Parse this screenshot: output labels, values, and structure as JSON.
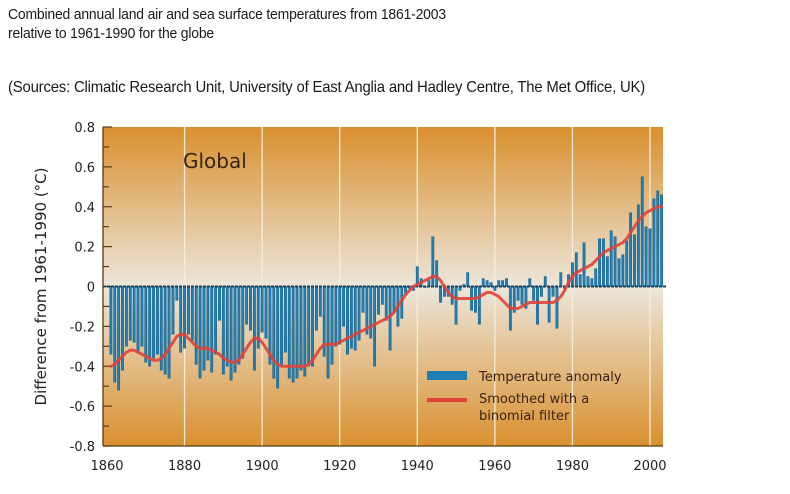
{
  "captions": {
    "line1": "Combined annual land air and sea surface temperatures from 1861-2003",
    "line2": "relative to 1961-1990 for the globe",
    "sources": "(Sources: Climatic Research Unit, University of East Anglia and Hadley Centre, The Met Office, UK)"
  },
  "colors": {
    "bar": "#1f7fb5",
    "bar_edge": "#10557f",
    "smooth": "#e0433a",
    "bg_top": "#d9902f",
    "bg_mid": "#ece6da",
    "bg_bottom": "#d9902f",
    "grid": "#f6ecd8"
  },
  "chart_data": {
    "type": "bar",
    "title": "Global",
    "xlabel": "",
    "ylabel": "Difference from 1961-1990 (°C)",
    "xlim": [
      1860,
      2005
    ],
    "ylim": [
      -0.8,
      0.8
    ],
    "grid": true,
    "grid_axis": "x",
    "legend_placement": "bottom-right",
    "xticks": [
      1860,
      1880,
      1900,
      1920,
      1940,
      1960,
      1980,
      2000
    ],
    "yticks": [
      0.8,
      0.6,
      0.4,
      0.2,
      0,
      -0.2,
      -0.4,
      -0.6,
      -0.8
    ],
    "ytick_labels": [
      "0.8",
      "0.6",
      "0.4",
      "0.2",
      "0",
      "-0.2",
      "-0.4",
      "-0.6",
      "-0.8"
    ],
    "x": [
      1861,
      1862,
      1863,
      1864,
      1865,
      1866,
      1867,
      1868,
      1869,
      1870,
      1871,
      1872,
      1873,
      1874,
      1875,
      1876,
      1877,
      1878,
      1879,
      1880,
      1881,
      1882,
      1883,
      1884,
      1885,
      1886,
      1887,
      1888,
      1889,
      1890,
      1891,
      1892,
      1893,
      1894,
      1895,
      1896,
      1897,
      1898,
      1899,
      1900,
      1901,
      1902,
      1903,
      1904,
      1905,
      1906,
      1907,
      1908,
      1909,
      1910,
      1911,
      1912,
      1913,
      1914,
      1915,
      1916,
      1917,
      1918,
      1919,
      1920,
      1921,
      1922,
      1923,
      1924,
      1925,
      1926,
      1927,
      1928,
      1929,
      1930,
      1931,
      1932,
      1933,
      1934,
      1935,
      1936,
      1937,
      1938,
      1939,
      1940,
      1941,
      1942,
      1943,
      1944,
      1945,
      1946,
      1947,
      1948,
      1949,
      1950,
      1951,
      1952,
      1953,
      1954,
      1955,
      1956,
      1957,
      1958,
      1959,
      1960,
      1961,
      1962,
      1963,
      1964,
      1965,
      1966,
      1967,
      1968,
      1969,
      1970,
      1971,
      1972,
      1973,
      1974,
      1975,
      1976,
      1977,
      1978,
      1979,
      1980,
      1981,
      1982,
      1983,
      1984,
      1985,
      1986,
      1987,
      1988,
      1989,
      1990,
      1991,
      1992,
      1993,
      1994,
      1995,
      1996,
      1997,
      1998,
      1999,
      2000,
      2001,
      2002,
      2003
    ],
    "series": [
      {
        "name": "Temperature anomaly",
        "type": "bar",
        "values": [
          -0.34,
          -0.48,
          -0.52,
          -0.42,
          -0.3,
          -0.27,
          -0.28,
          -0.33,
          -0.3,
          -0.38,
          -0.4,
          -0.36,
          -0.34,
          -0.42,
          -0.44,
          -0.46,
          -0.24,
          -0.07,
          -0.33,
          -0.31,
          -0.24,
          -0.27,
          -0.39,
          -0.46,
          -0.42,
          -0.37,
          -0.43,
          -0.34,
          -0.17,
          -0.44,
          -0.4,
          -0.47,
          -0.43,
          -0.39,
          -0.36,
          -0.19,
          -0.22,
          -0.42,
          -0.31,
          -0.23,
          -0.26,
          -0.39,
          -0.46,
          -0.51,
          -0.39,
          -0.33,
          -0.46,
          -0.48,
          -0.46,
          -0.42,
          -0.45,
          -0.4,
          -0.4,
          -0.22,
          -0.15,
          -0.35,
          -0.46,
          -0.39,
          -0.3,
          -0.29,
          -0.2,
          -0.34,
          -0.31,
          -0.32,
          -0.27,
          -0.13,
          -0.24,
          -0.26,
          -0.4,
          -0.14,
          -0.09,
          -0.17,
          -0.32,
          -0.13,
          -0.2,
          -0.16,
          -0.04,
          -0.01,
          -0.02,
          0.1,
          0.04,
          0.0,
          0.03,
          0.25,
          0.13,
          -0.08,
          -0.05,
          -0.05,
          -0.09,
          -0.19,
          -0.02,
          0.01,
          0.07,
          -0.12,
          -0.13,
          -0.19,
          0.04,
          0.03,
          0.02,
          -0.02,
          0.03,
          0.03,
          0.04,
          -0.22,
          -0.13,
          -0.07,
          -0.09,
          -0.11,
          0.04,
          -0.07,
          -0.19,
          -0.05,
          0.05,
          -0.18,
          -0.05,
          -0.21,
          0.07,
          -0.01,
          0.06,
          0.12,
          0.17,
          0.06,
          0.22,
          0.05,
          0.04,
          0.09,
          0.24,
          0.24,
          0.15,
          0.28,
          0.25,
          0.14,
          0.16,
          0.23,
          0.37,
          0.26,
          0.41,
          0.55,
          0.3,
          0.29,
          0.44,
          0.48,
          0.46
        ]
      },
      {
        "name": "Smoothed with a binomial filter",
        "type": "line",
        "values": [
          -0.4,
          -0.39,
          -0.37,
          -0.35,
          -0.33,
          -0.32,
          -0.32,
          -0.33,
          -0.34,
          -0.35,
          -0.36,
          -0.37,
          -0.37,
          -0.36,
          -0.34,
          -0.31,
          -0.28,
          -0.25,
          -0.24,
          -0.24,
          -0.26,
          -0.28,
          -0.3,
          -0.31,
          -0.31,
          -0.31,
          -0.32,
          -0.33,
          -0.34,
          -0.36,
          -0.37,
          -0.38,
          -0.38,
          -0.37,
          -0.34,
          -0.31,
          -0.28,
          -0.26,
          -0.26,
          -0.28,
          -0.31,
          -0.34,
          -0.37,
          -0.39,
          -0.4,
          -0.4,
          -0.4,
          -0.4,
          -0.4,
          -0.4,
          -0.4,
          -0.39,
          -0.37,
          -0.34,
          -0.31,
          -0.29,
          -0.29,
          -0.29,
          -0.29,
          -0.28,
          -0.27,
          -0.26,
          -0.25,
          -0.24,
          -0.23,
          -0.22,
          -0.21,
          -0.2,
          -0.19,
          -0.18,
          -0.17,
          -0.16,
          -0.15,
          -0.13,
          -0.1,
          -0.07,
          -0.04,
          -0.02,
          0.0,
          0.01,
          0.02,
          0.03,
          0.04,
          0.05,
          0.05,
          0.03,
          0.0,
          -0.03,
          -0.05,
          -0.06,
          -0.06,
          -0.06,
          -0.06,
          -0.06,
          -0.06,
          -0.05,
          -0.04,
          -0.03,
          -0.03,
          -0.04,
          -0.05,
          -0.07,
          -0.09,
          -0.11,
          -0.11,
          -0.11,
          -0.1,
          -0.09,
          -0.08,
          -0.08,
          -0.08,
          -0.08,
          -0.08,
          -0.08,
          -0.08,
          -0.07,
          -0.05,
          -0.02,
          0.02,
          0.05,
          0.07,
          0.08,
          0.09,
          0.1,
          0.11,
          0.13,
          0.15,
          0.17,
          0.18,
          0.19,
          0.2,
          0.21,
          0.22,
          0.24,
          0.27,
          0.3,
          0.33,
          0.35,
          0.37,
          0.38,
          0.39,
          0.4,
          0.4
        ]
      }
    ],
    "legend": [
      "Temperature anomaly",
      "Smoothed with a binomial filter"
    ],
    "legend_lines": [
      "Temperature anomaly",
      "Smoothed with a",
      "binomial filter"
    ],
    "panel_label": "Global"
  }
}
